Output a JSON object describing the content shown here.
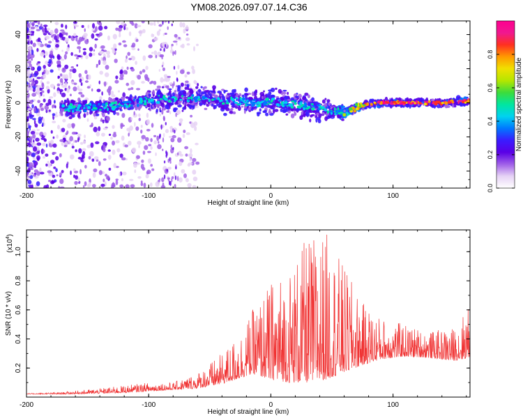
{
  "chart_data": [
    {
      "type": "heatmap",
      "title": "YM08.2026.097.07.14.C36",
      "xlabel": "Height of straight line (km)",
      "ylabel": "Frequency (Hz)",
      "xlim": [
        -200,
        163
      ],
      "ylim": [
        -50,
        48
      ],
      "xticks": [
        -200,
        -100,
        0,
        100
      ],
      "yticks": [
        -40,
        -20,
        0,
        20,
        40
      ],
      "colorbar": {
        "label": "Normalized spectral amplitude",
        "range": [
          0,
          1
        ],
        "ticks": [
          0.0,
          0.2,
          0.4,
          0.6,
          0.8
        ],
        "colormap": [
          "#ffffff",
          "#e6d2f5",
          "#a060e8",
          "#5a00e6",
          "#3a1cff",
          "#0078ff",
          "#00d2f0",
          "#00e6a0",
          "#3cdc3c",
          "#b4e600",
          "#f0e000",
          "#ff9a00",
          "#ff3020",
          "#f01890",
          "#ff0090"
        ]
      },
      "ridge": {
        "description": "dominant frequency vs height",
        "x": [
          -170,
          -150,
          -130,
          -110,
          -90,
          -70,
          -50,
          -30,
          -10,
          0,
          10,
          30,
          45,
          55,
          60,
          70,
          80,
          90,
          100,
          120,
          140,
          160
        ],
        "y": [
          -3,
          -3,
          -2,
          0,
          2,
          3,
          2,
          1,
          0,
          1,
          0,
          -2,
          -4,
          -5,
          -6,
          -3,
          -1,
          0,
          0,
          0,
          0,
          1
        ]
      }
    },
    {
      "type": "line",
      "xlabel": "Height of straight line (km)",
      "ylabel": "SNR (10 * v/v)",
      "yscale_label": "(x10",
      "yscale_exponent": "4",
      "yscale_close": ")",
      "xlim": [
        -200,
        163
      ],
      "ylim": [
        0,
        1.15
      ],
      "xticks": [
        -200,
        -100,
        0,
        100
      ],
      "yticks": [
        0.2,
        0.4,
        0.6,
        0.8,
        1.0
      ],
      "color": "#f03232",
      "envelope": {
        "x": [
          -200,
          -170,
          -140,
          -120,
          -100,
          -80,
          -60,
          -40,
          -25,
          -15,
          0,
          15,
          30,
          45,
          60,
          75,
          90,
          110,
          130,
          150,
          163
        ],
        "baseline": [
          0.02,
          0.02,
          0.025,
          0.03,
          0.04,
          0.05,
          0.06,
          0.09,
          0.13,
          0.16,
          0.12,
          0.1,
          0.1,
          0.12,
          0.17,
          0.22,
          0.26,
          0.28,
          0.27,
          0.25,
          0.27
        ],
        "peak": [
          0.025,
          0.035,
          0.06,
          0.08,
          0.1,
          0.1,
          0.17,
          0.3,
          0.45,
          0.6,
          0.8,
          0.9,
          1.1,
          1.15,
          0.9,
          0.65,
          0.55,
          0.5,
          0.45,
          0.48,
          0.65
        ]
      }
    }
  ]
}
